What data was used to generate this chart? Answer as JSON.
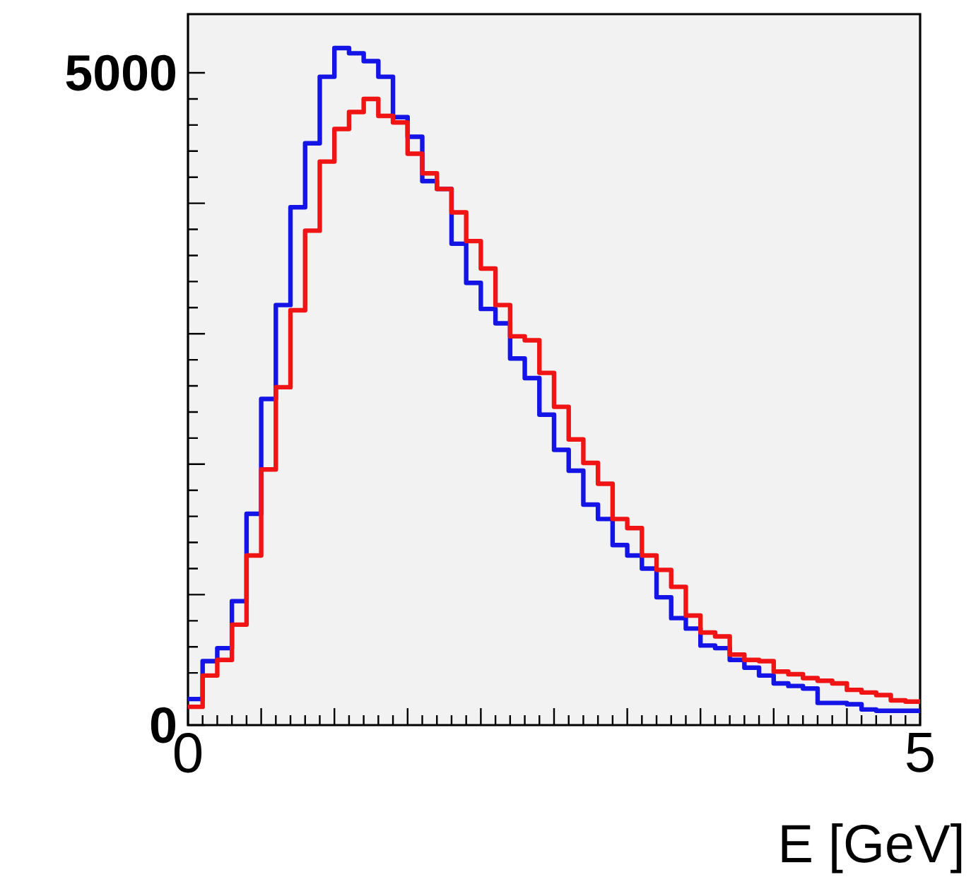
{
  "chart_data": {
    "type": "histogram",
    "xlabel": "E   [GeV]",
    "bins": [
      0,
      0.1,
      0.2,
      0.3,
      0.4,
      0.5,
      0.6,
      0.7,
      0.8,
      0.9,
      1.0,
      1.1,
      1.2,
      1.3,
      1.4,
      1.5,
      1.6,
      1.7,
      1.8,
      1.9,
      2.0,
      2.1,
      2.2,
      2.3,
      2.4,
      2.5,
      2.6,
      2.7,
      2.8,
      2.9,
      3.0,
      3.1,
      3.2,
      3.3,
      3.4,
      3.5,
      3.6,
      3.7,
      3.8,
      3.9,
      4.0,
      4.1,
      4.2,
      4.3,
      4.4,
      4.5,
      4.6,
      4.7,
      4.8,
      4.9,
      5.0
    ],
    "series": [
      {
        "color": "#1414e6",
        "values": [
          200,
          490,
          590,
          950,
          1620,
          2500,
          3220,
          3970,
          4460,
          4970,
          5190,
          5150,
          5090,
          4970,
          4660,
          4510,
          4170,
          4110,
          3690,
          3390,
          3190,
          3080,
          2810,
          2660,
          2380,
          2110,
          1950,
          1690,
          1580,
          1380,
          1300,
          1200,
          980,
          820,
          740,
          610,
          590,
          500,
          440,
          380,
          320,
          300,
          280,
          170,
          170,
          160,
          120,
          110,
          110,
          110
        ]
      },
      {
        "color": "#f01414",
        "values": [
          140,
          380,
          500,
          770,
          1300,
          1960,
          2590,
          3180,
          3790,
          4320,
          4570,
          4700,
          4800,
          4670,
          4620,
          4380,
          4230,
          4110,
          3930,
          3710,
          3500,
          3220,
          2980,
          2950,
          2700,
          2440,
          2190,
          2010,
          1850,
          1580,
          1510,
          1300,
          1190,
          1060,
          840,
          710,
          680,
          540,
          500,
          490,
          410,
          390,
          360,
          340,
          320,
          270,
          250,
          230,
          190,
          180
        ]
      }
    ],
    "xlim": [
      0,
      5
    ],
    "ylim": [
      0,
      5450
    ],
    "xticks": [
      0,
      {
        "value": 0.5,
        "label": null
      },
      {
        "value": 1,
        "label": null
      },
      {
        "value": 1.5,
        "label": null
      },
      {
        "value": 2,
        "label": null
      },
      {
        "value": 2.5,
        "label": null
      },
      {
        "value": 3,
        "label": null
      },
      {
        "value": 3.5,
        "label": null
      },
      {
        "value": 4,
        "label": null
      },
      {
        "value": 4.5,
        "label": null
      },
      5
    ],
    "yticks": [
      0,
      {
        "value": 1000,
        "label": null
      },
      {
        "value": 2000,
        "label": null
      },
      {
        "value": 3000,
        "label": null
      },
      {
        "value": 4000,
        "label": null
      },
      {
        "value": 5000,
        "label": "5000"
      }
    ],
    "marker": "none"
  }
}
